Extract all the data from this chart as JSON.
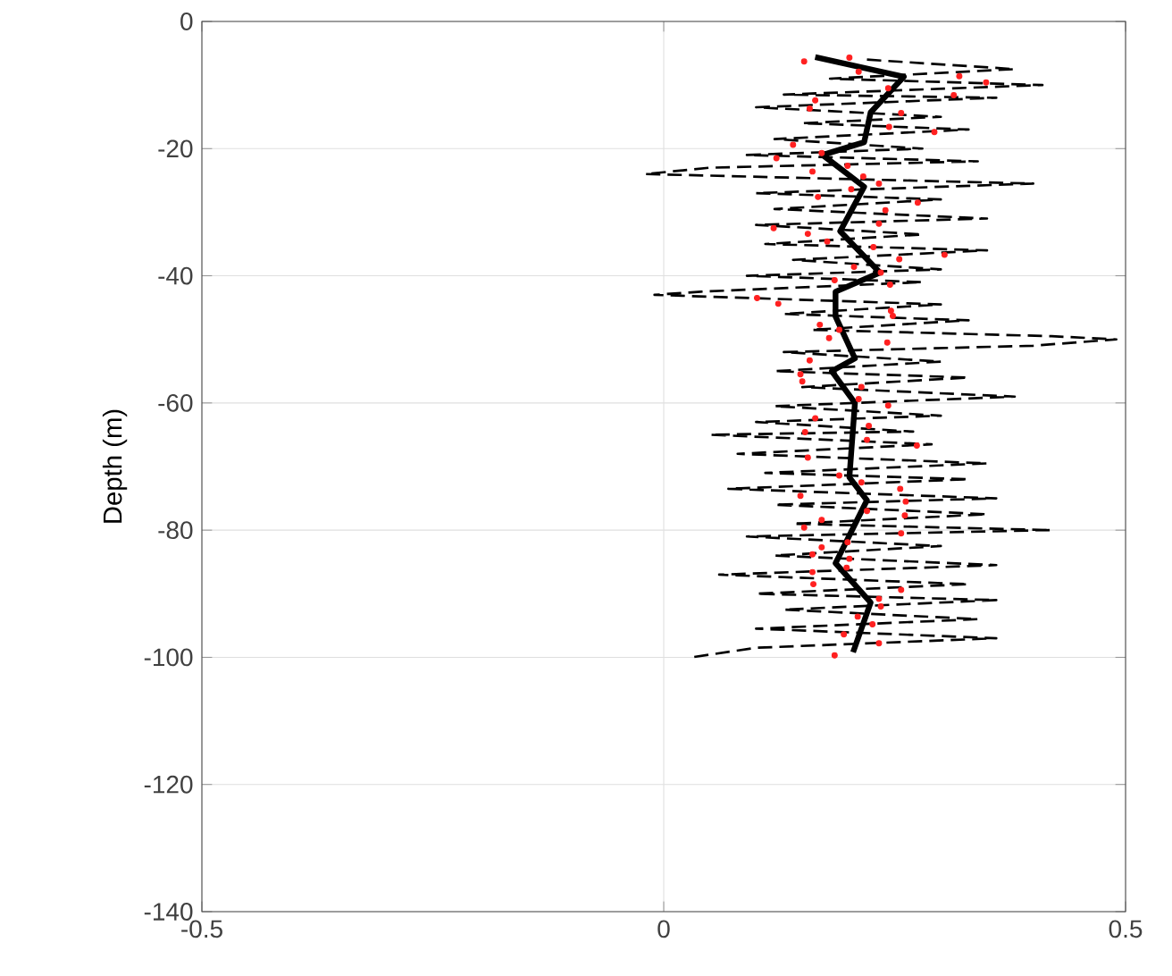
{
  "chart_data": {
    "type": "line",
    "ylabel": "Depth (m)",
    "xlim": [
      -0.5,
      0.5
    ],
    "xticks": [
      -0.5,
      0,
      0.5
    ],
    "ylim": [
      -140,
      0
    ],
    "yticks": [
      -140,
      -120,
      -100,
      -80,
      -60,
      -40,
      -20,
      0
    ],
    "grid": true,
    "series": [
      {
        "line_style": "dashed",
        "color": "#000000",
        "x": [
          0.22,
          0.38,
          0.18,
          0.41,
          0.13,
          0.36,
          0.1,
          0.3,
          0.15,
          0.33,
          0.12,
          0.28,
          0.09,
          0.34,
          0.05,
          -0.02,
          0.4,
          0.1,
          0.3,
          0.12,
          0.35,
          0.1,
          0.28,
          0.11,
          0.35,
          0.14,
          0.3,
          0.09,
          0.28,
          0.04,
          -0.01,
          0.3,
          0.13,
          0.33,
          0.16,
          0.42,
          0.49,
          0.4,
          0.13,
          0.3,
          0.12,
          0.33,
          0.15,
          0.38,
          0.12,
          0.3,
          0.1,
          0.27,
          0.05,
          0.29,
          0.08,
          0.35,
          0.11,
          0.33,
          0.07,
          0.36,
          0.12,
          0.35,
          0.14,
          0.42,
          0.09,
          0.3,
          0.12,
          0.36,
          0.06,
          0.33,
          0.1,
          0.36,
          0.13,
          0.34,
          0.1,
          0.36,
          0.1,
          0.03
        ],
        "values": [
          -6,
          -7.5,
          -9,
          -10,
          -11.5,
          -12,
          -13.5,
          -15,
          -16,
          -17,
          -18.5,
          -20,
          -21,
          -22,
          -23,
          -24,
          -25.5,
          -27,
          -28,
          -29.5,
          -31,
          -32,
          -33.5,
          -35,
          -36,
          -37.5,
          -39,
          -40,
          -41,
          -42.5,
          -43,
          -44.5,
          -46,
          -47,
          -48.5,
          -49.5,
          -50,
          -51,
          -52,
          -53.5,
          -55,
          -56,
          -57.5,
          -59,
          -60.5,
          -62,
          -63,
          -64.5,
          -65,
          -66.5,
          -68,
          -69.5,
          -71,
          -72,
          -73.5,
          -75,
          -76,
          -77.5,
          -79,
          -80,
          -81,
          -82.5,
          -84,
          -85.5,
          -87,
          -88.5,
          -90,
          -91,
          -92.5,
          -94,
          -95.5,
          -97,
          -98.5,
          -100
        ]
      },
      {
        "type": "scatter",
        "marker": "circle",
        "color": "#ff2020",
        "x": [
          0.152,
          0.201,
          0.211,
          0.243,
          0.32,
          0.349,
          0.164,
          0.314,
          0.158,
          0.257,
          0.244,
          0.293,
          0.14,
          0.122,
          0.171,
          0.199,
          0.161,
          0.216,
          0.233,
          0.167,
          0.275,
          0.203,
          0.24,
          0.233,
          0.119,
          0.156,
          0.177,
          0.227,
          0.304,
          0.255,
          0.206,
          0.235,
          0.185,
          0.245,
          0.101,
          0.124,
          0.246,
          0.248,
          0.169,
          0.19,
          0.179,
          0.242,
          0.158,
          0.148,
          0.15,
          0.214,
          0.211,
          0.243,
          0.164,
          0.153,
          0.222,
          0.22,
          0.274,
          0.156,
          0.19,
          0.214,
          0.256,
          0.148,
          0.262,
          0.22,
          0.261,
          0.171,
          0.152,
          0.257,
          0.199,
          0.171,
          0.161,
          0.201,
          0.198,
          0.161,
          0.162,
          0.257,
          0.233,
          0.235,
          0.21,
          0.226,
          0.195,
          0.233,
          0.185
        ],
        "values": [
          -6.3,
          -5.7,
          -7.9,
          -10.5,
          -8.6,
          -9.6,
          -12.4,
          -11.6,
          -13.7,
          -14.4,
          -16.6,
          -17.4,
          -19.4,
          -21.5,
          -20.7,
          -22.7,
          -23.6,
          -24.4,
          -25.5,
          -27.6,
          -28.5,
          -26.4,
          -29.7,
          -31.8,
          -32.5,
          -33.4,
          -34.6,
          -35.5,
          -36.7,
          -37.4,
          -38.6,
          -39.5,
          -40.7,
          -41.4,
          -43.5,
          -44.4,
          -45.5,
          -46.3,
          -47.7,
          -48.5,
          -49.8,
          -50.5,
          -53.3,
          -55.5,
          -56.6,
          -57.5,
          -59.4,
          -60.4,
          -62.4,
          -64.6,
          -63.6,
          -65.8,
          -66.7,
          -68.6,
          -71.4,
          -72.5,
          -73.5,
          -74.6,
          -75.5,
          -77.0,
          -77.7,
          -78.4,
          -79.6,
          -80.5,
          -81.9,
          -82.7,
          -83.8,
          -84.5,
          -85.9,
          -86.6,
          -88.5,
          -89.4,
          -90.8,
          -92.0,
          -93.6,
          -94.8,
          -96.4,
          -97.8,
          -99.7
        ]
      },
      {
        "line_style": "solid",
        "color": "#000000",
        "x": [
          0.164,
          0.26,
          0.224,
          0.217,
          0.172,
          0.217,
          0.191,
          0.234,
          0.186,
          0.186,
          0.207,
          0.182,
          0.207,
          0.201,
          0.22,
          0.186,
          0.224,
          0.205
        ],
        "values": [
          -5.6,
          -8.7,
          -14.3,
          -19,
          -21,
          -26,
          -33,
          -39.5,
          -42.5,
          -46.4,
          -53,
          -55,
          -60,
          -71.7,
          -75.3,
          -85.2,
          -91.4,
          -99.2
        ]
      }
    ]
  }
}
